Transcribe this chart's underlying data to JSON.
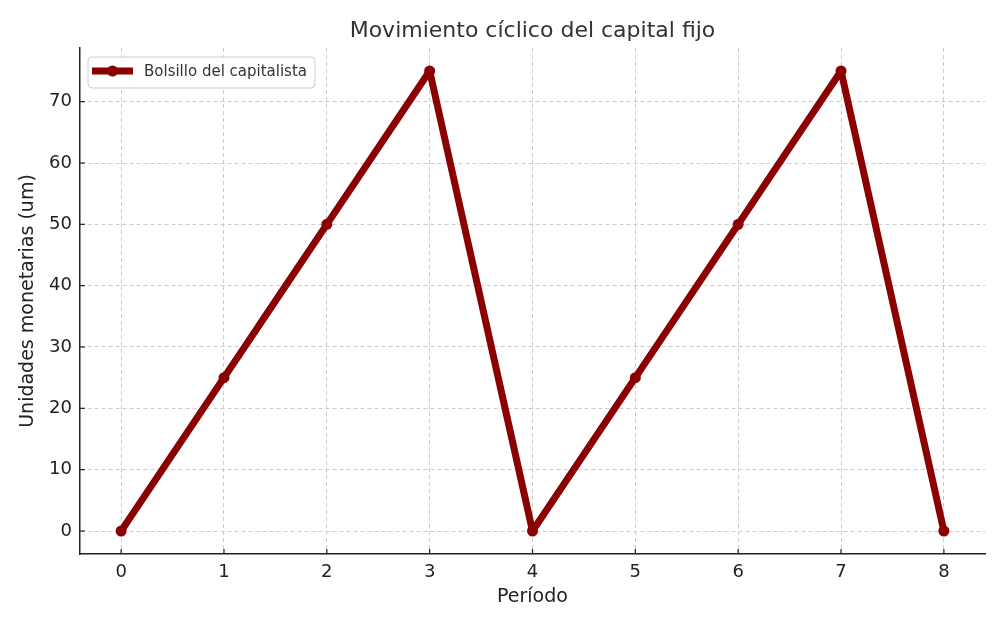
{
  "chart_data": {
    "type": "line",
    "title": "Movimiento cíclico del capital fijo",
    "xlabel": "Período",
    "ylabel": "Unidades monetarias (um)",
    "x": [
      0,
      1,
      2,
      3,
      4,
      5,
      6,
      7,
      8
    ],
    "series": [
      {
        "name": "Bolsillo del capitalista",
        "color": "#8b0000",
        "values": [
          0,
          25,
          50,
          75,
          0,
          25,
          50,
          75,
          0
        ]
      }
    ],
    "xlim": [
      -0.4,
      8.4
    ],
    "xticks": [
      0,
      1,
      2,
      3,
      4,
      5,
      6,
      7,
      8
    ],
    "ylim": [
      -3.75,
      78.75
    ],
    "yticks": [
      0,
      10,
      20,
      30,
      40,
      50,
      60,
      70
    ],
    "grid": true,
    "legend": "top left",
    "marker": "circle",
    "line_style": "solid"
  }
}
